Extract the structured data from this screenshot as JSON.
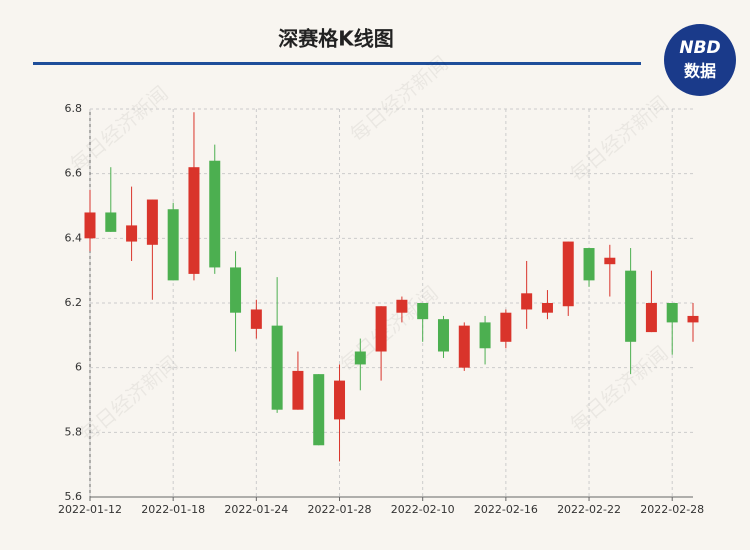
{
  "chart_data": {
    "type": "candlestick",
    "title": "深赛格K线图",
    "logo": {
      "top": "NBD",
      "bottom": "数据"
    },
    "watermark": "每日经济新闻",
    "categories": [
      "2022-01-12",
      null,
      null,
      null,
      "2022-01-18",
      null,
      null,
      null,
      "2022-01-24",
      null,
      null,
      null,
      "2022-01-28",
      null,
      null,
      null,
      "2022-02-10",
      null,
      null,
      null,
      "2022-02-16",
      null,
      null,
      null,
      "2022-02-22",
      null,
      null,
      null,
      "2022-02-28",
      null
    ],
    "open": [
      6.4,
      6.48,
      6.39,
      6.38,
      6.49,
      6.29,
      6.64,
      6.31,
      6.12,
      6.13,
      5.87,
      5.98,
      5.84,
      6.05,
      6.05,
      6.17,
      6.2,
      6.15,
      6.0,
      6.14,
      6.08,
      6.18,
      6.17,
      6.19,
      6.37,
      6.32,
      6.3,
      6.11,
      6.2,
      6.14
    ],
    "close": [
      6.48,
      6.42,
      6.44,
      6.52,
      6.27,
      6.62,
      6.31,
      6.17,
      6.18,
      5.87,
      5.99,
      5.76,
      5.96,
      6.01,
      6.19,
      6.21,
      6.15,
      6.05,
      6.13,
      6.06,
      6.17,
      6.23,
      6.2,
      6.39,
      6.27,
      6.34,
      6.08,
      6.2,
      6.14,
      6.16
    ],
    "high": [
      6.55,
      6.62,
      6.56,
      6.52,
      6.51,
      6.79,
      6.69,
      6.36,
      6.21,
      6.28,
      6.05,
      5.98,
      6.01,
      6.09,
      6.19,
      6.22,
      6.2,
      6.16,
      6.14,
      6.16,
      6.18,
      6.33,
      6.24,
      6.39,
      6.37,
      6.38,
      6.37,
      6.3,
      6.2,
      6.2
    ],
    "low": [
      6.36,
      6.42,
      6.33,
      6.21,
      6.27,
      6.27,
      6.29,
      6.05,
      6.09,
      5.86,
      5.87,
      5.76,
      5.71,
      5.93,
      5.96,
      6.14,
      6.08,
      6.03,
      5.99,
      6.01,
      6.06,
      6.12,
      6.15,
      6.16,
      6.25,
      6.22,
      5.98,
      6.11,
      6.04,
      6.08
    ],
    "up_color": "#d9342b",
    "down_color": "#4caf50",
    "ylim": [
      5.6,
      6.8
    ],
    "yticks": [
      5.6,
      5.8,
      6,
      6.2,
      6.4,
      6.6,
      6.8
    ],
    "grid": true
  }
}
